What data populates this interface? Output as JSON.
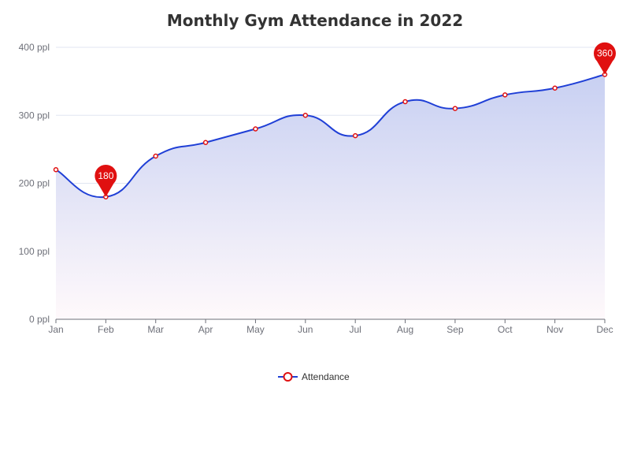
{
  "chart_data": {
    "type": "area",
    "title": "Monthly Gym Attendance in 2022",
    "categories": [
      "Jan",
      "Feb",
      "Mar",
      "Apr",
      "May",
      "Jun",
      "Jul",
      "Aug",
      "Sep",
      "Oct",
      "Nov",
      "Dec"
    ],
    "series": [
      {
        "name": "Attendance",
        "values": [
          220,
          180,
          240,
          260,
          280,
          300,
          270,
          320,
          310,
          330,
          340,
          360
        ],
        "color": "#1f3fd6",
        "marker_color": "#e01010",
        "smooth": true
      }
    ],
    "ylim": [
      0,
      400
    ],
    "yticks": [
      0,
      100,
      200,
      300,
      400
    ],
    "ytick_labels": [
      "0 ppl",
      "100 ppl",
      "200 ppl",
      "300 ppl",
      "400 ppl"
    ],
    "grid": true,
    "legend_position": "bottom-center",
    "markers": [
      {
        "type": "min",
        "category": "Feb",
        "value": 180,
        "label": "180"
      },
      {
        "type": "max",
        "category": "Dec",
        "value": 360,
        "label": "360"
      }
    ],
    "area_gradient": [
      "#c8d0f2",
      "#fff9fb"
    ],
    "pin_color": "#e01010"
  }
}
